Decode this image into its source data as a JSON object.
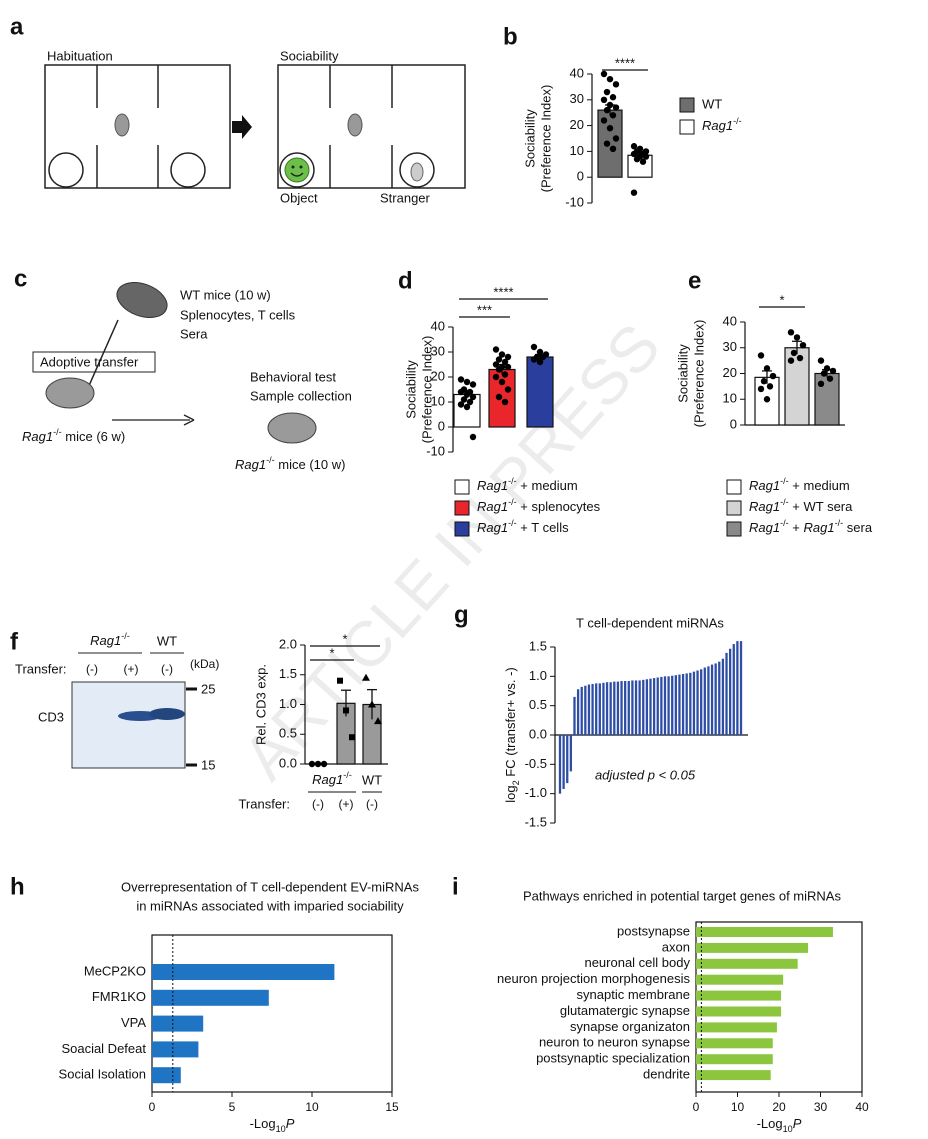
{
  "panel_letters": [
    "a",
    "b",
    "c",
    "d",
    "e",
    "f",
    "g",
    "h",
    "i"
  ],
  "watermark": "ARTICLE IN PRESS",
  "diagrams": {
    "a": {
      "habituation": "Habituation",
      "sociability": "Sociability",
      "object": "Object",
      "stranger": "Stranger"
    },
    "c": {
      "donor": "WT mice (10 w)",
      "cells": "Splenocytes, T cells",
      "sera": "Sera",
      "transfer": "Adoptive transfer",
      "test": "Behavioral test",
      "collection": "Sample collection",
      "recipient": [
        {
          "text": "Rag1",
          "style": "i"
        },
        {
          "text": "-/-",
          "style": "sup"
        },
        {
          "text": " mice (6 w)"
        }
      ],
      "recipient_after": [
        {
          "text": "Rag1",
          "style": "i"
        },
        {
          "text": "-/-",
          "style": "sup"
        },
        {
          "text": " mice (10 w)"
        }
      ]
    },
    "f_blot": {
      "groups": [
        [
          {
            "text": "Rag1",
            "style": "i"
          },
          {
            "text": "-/-",
            "style": "sup"
          }
        ],
        "WT"
      ],
      "transfer_label": "Transfer:",
      "lanes": [
        "(-)",
        "(+)",
        "(-)"
      ],
      "unit": "(kDa)",
      "markers": [
        "25",
        "15"
      ],
      "protein": "CD3"
    }
  },
  "chart_data": [
    {
      "type": "bar",
      "ylabel": [
        "Sociability",
        "(Preference Index)"
      ],
      "values": [
        26,
        8.5
      ],
      "errors": [
        2,
        1
      ],
      "points": [
        [
          40,
          38,
          36,
          33,
          31,
          30,
          28,
          27,
          26,
          24,
          22,
          19,
          15,
          13,
          11
        ],
        [
          12,
          11,
          10,
          10,
          9,
          9,
          8,
          8,
          7,
          6,
          -6
        ]
      ],
      "colors": [
        "#6e6e6e",
        "#ffffff"
      ],
      "legend": [
        "WT",
        [
          {
            "text": "Rag1",
            "style": "i"
          },
          {
            "text": "-/-",
            "style": "sup"
          }
        ]
      ],
      "ylim": [
        -10,
        40
      ],
      "yticks": [
        -10,
        0,
        10,
        20,
        30,
        40
      ],
      "significance": [
        {
          "label": "****",
          "pair": [
            0,
            1
          ]
        }
      ]
    },
    {
      "type": "bar",
      "ylabel": [
        "Sociability",
        "(Preference Index)"
      ],
      "values": [
        13,
        23,
        28
      ],
      "errors": [
        1.5,
        2,
        1
      ],
      "points": [
        [
          19,
          18,
          17,
          15,
          14,
          14,
          13,
          12,
          11,
          10,
          9,
          8,
          -4
        ],
        [
          31,
          29,
          28,
          27,
          26,
          25,
          24,
          24,
          23,
          21,
          20,
          18,
          15,
          12,
          10
        ],
        [
          32,
          30,
          29,
          28,
          28,
          27,
          26
        ]
      ],
      "colors": [
        "#ffffff",
        "#e8262b",
        "#2a3f9d"
      ],
      "legend": [
        [
          {
            "text": "Rag1",
            "style": "i"
          },
          {
            "text": "-/-",
            "style": "sup"
          },
          {
            "text": " + medium"
          }
        ],
        [
          {
            "text": "Rag1",
            "style": "i"
          },
          {
            "text": "-/-",
            "style": "sup"
          },
          {
            "text": " + splenocytes"
          }
        ],
        [
          {
            "text": "Rag1",
            "style": "i"
          },
          {
            "text": "-/-",
            "style": "sup"
          },
          {
            "text": " + T cells"
          }
        ]
      ],
      "ylim": [
        -10,
        40
      ],
      "yticks": [
        -10,
        0,
        10,
        20,
        30,
        40
      ],
      "significance": [
        {
          "label": "***",
          "pair": [
            0,
            1
          ]
        },
        {
          "label": "****",
          "pair": [
            0,
            2
          ]
        }
      ]
    },
    {
      "type": "bar",
      "ylabel": [
        "Sociability",
        "(Preference Index)"
      ],
      "values": [
        18.5,
        30,
        20
      ],
      "errors": [
        2.5,
        2.5,
        1.5
      ],
      "points": [
        [
          27,
          22,
          19,
          17,
          15,
          14,
          10
        ],
        [
          36,
          34,
          31,
          28,
          26,
          25
        ],
        [
          25,
          22,
          21,
          20,
          18,
          16
        ]
      ],
      "colors": [
        "#ffffff",
        "#d4d4d4",
        "#8a8a8a"
      ],
      "legend": [
        [
          {
            "text": "Rag1",
            "style": "i"
          },
          {
            "text": "-/-",
            "style": "sup"
          },
          {
            "text": " + medium"
          }
        ],
        [
          {
            "text": "Rag1",
            "style": "i"
          },
          {
            "text": "-/-",
            "style": "sup"
          },
          {
            "text": " + WT sera"
          }
        ],
        [
          {
            "text": "Rag1",
            "style": "i"
          },
          {
            "text": "-/-",
            "style": "sup"
          },
          {
            "text": " + "
          },
          {
            "text": "Rag1",
            "style": "i"
          },
          {
            "text": "-/-",
            "style": "sup"
          },
          {
            "text": " sera"
          }
        ]
      ],
      "ylim": [
        0,
        40
      ],
      "yticks": [
        0,
        10,
        20,
        30,
        40
      ],
      "significance": [
        {
          "label": "*",
          "pair": [
            0,
            1
          ]
        }
      ]
    },
    {
      "type": "bar",
      "ylabel": "Rel. CD3 exp.",
      "categories": [
        "(-)",
        "(+)",
        "(-)"
      ],
      "groups": [
        {
          "label": [
            {
              "text": "Rag1",
              "style": "i"
            },
            {
              "text": "-/-",
              "style": "sup"
            }
          ],
          "bars": [
            0,
            1
          ]
        },
        {
          "label": "WT",
          "bars": [
            2
          ]
        }
      ],
      "transfer_label": "Transfer:",
      "values": [
        0,
        1.02,
        1.0
      ],
      "errors": [
        0,
        0.22,
        0.25
      ],
      "points": [
        [
          0,
          0,
          0
        ],
        [
          1.4,
          0.9,
          0.45
        ],
        [
          1.45,
          1.0,
          0.72
        ]
      ],
      "point_markers": [
        "circle",
        "square",
        "triangle"
      ],
      "color": "#9a9a9a",
      "ylim": [
        0,
        2
      ],
      "yticks": [
        {
          "value": 0,
          "label": "0.0"
        },
        0.5,
        {
          "value": 1,
          "label": "1.0"
        },
        1.5,
        {
          "value": 2,
          "label": "2.0"
        }
      ],
      "significance": [
        {
          "label": "*",
          "pair": [
            0,
            1
          ]
        },
        {
          "label": "*",
          "pair": [
            0,
            2
          ]
        }
      ]
    },
    {
      "type": "bar",
      "title": "T cell-dependent miRNAs",
      "ylabel": [
        {
          "text": "log"
        },
        {
          "text": "2",
          "style": "sub"
        },
        {
          "text": " FC (transfer+ vs. -)"
        }
      ],
      "values": [
        -1.0,
        -0.92,
        -0.82,
        -0.62,
        0.65,
        0.78,
        0.82,
        0.84,
        0.86,
        0.87,
        0.88,
        0.88,
        0.89,
        0.9,
        0.9,
        0.91,
        0.91,
        0.92,
        0.92,
        0.92,
        0.93,
        0.93,
        0.93,
        0.94,
        0.95,
        0.96,
        0.97,
        0.98,
        0.99,
        1.0,
        1.0,
        1.01,
        1.02,
        1.03,
        1.04,
        1.05,
        1.06,
        1.08,
        1.1,
        1.12,
        1.15,
        1.17,
        1.2,
        1.22,
        1.25,
        1.3,
        1.4,
        1.47,
        1.55,
        1.6,
        1.6
      ],
      "color": "#2e4ea6",
      "ylim": [
        -1.5,
        1.5
      ],
      "yticks": [
        1.5,
        {
          "value": 1,
          "label": "1.0"
        },
        0.5,
        {
          "value": 0,
          "label": "0.0"
        },
        -0.5,
        {
          "value": -1,
          "label": "-1.0"
        },
        -1.5
      ],
      "annotation": "adjusted p < 0.05"
    },
    {
      "type": "barh",
      "title": [
        "Overrepresentation of T cell-dependent EV-miRNAs",
        "in miRNAs associated with imparied sociability"
      ],
      "categories": [
        "MeCP2KO",
        "FMR1KO",
        "VPA",
        "Soacial Defeat",
        "Social Isolation"
      ],
      "values": [
        11.4,
        7.3,
        3.2,
        2.9,
        1.8
      ],
      "color": "#1f75c4",
      "xlim": [
        0,
        15
      ],
      "xticks": [
        0,
        5,
        10,
        15
      ],
      "xlabel": [
        {
          "text": "-Log"
        },
        {
          "text": "10",
          "style": "sub"
        },
        {
          "text": "P",
          "style": "i"
        }
      ],
      "threshold": 1.3
    },
    {
      "type": "barh",
      "title": "Pathways enriched in potential target genes of miRNAs",
      "categories": [
        "postsynapse",
        "axon",
        "neuronal cell body",
        "neuron projection morphogenesis",
        "synaptic membrane",
        "glutamatergic synapse",
        "synapse organizaton",
        "neuron to neuron synapse",
        "postsynaptic specialization",
        "dendrite"
      ],
      "values": [
        33,
        27,
        24.5,
        21,
        20.5,
        20.5,
        19.5,
        18.5,
        18.5,
        18
      ],
      "color": "#8cc63e",
      "xlim": [
        0,
        40
      ],
      "xticks": [
        0,
        10,
        20,
        30,
        40
      ],
      "xlabel": [
        {
          "text": "-Log"
        },
        {
          "text": "10",
          "style": "sub"
        },
        {
          "text": "P",
          "style": "i"
        }
      ],
      "threshold": 1.3
    }
  ]
}
